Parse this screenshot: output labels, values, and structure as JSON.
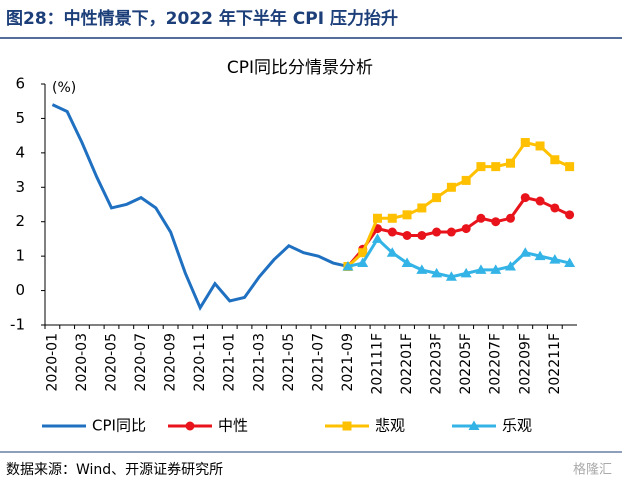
{
  "chart_data": {
    "type": "line",
    "title": "图28：中性情景下，2022 年下半年 CPI 压力抬升",
    "subtitle": "CPI同比分情景分析",
    "y_label": "(%)",
    "source": "数据来源：Wind、开源证券研究所",
    "watermark": "格隆汇",
    "categories": [
      "2020-01",
      null,
      "2020-03",
      null,
      "2020-05",
      null,
      "2020-07",
      null,
      "2020-09",
      null,
      "2020-11",
      null,
      "2021-01",
      null,
      "2021-03",
      null,
      "2021-05",
      null,
      "2021-07",
      null,
      "2021-09",
      null,
      "202111F",
      null,
      "202201F",
      null,
      "202203F",
      null,
      "202205F",
      null,
      "202207F",
      null,
      "202209F",
      null,
      "202211F",
      null
    ],
    "series": [
      {
        "name": "CPI同比",
        "color": "#1f70c1",
        "marker": "none",
        "values": [
          5.4,
          5.2,
          4.3,
          3.3,
          2.4,
          2.5,
          2.7,
          2.4,
          1.7,
          0.5,
          -0.5,
          0.2,
          -0.3,
          -0.2,
          0.4,
          0.9,
          1.3,
          1.1,
          1.0,
          0.8,
          0.7,
          null,
          null,
          null,
          null,
          null,
          null,
          null,
          null,
          null,
          null,
          null,
          null,
          null,
          null,
          null
        ]
      },
      {
        "name": "中性",
        "color": "#e8131b",
        "marker": "circle",
        "values": [
          null,
          null,
          null,
          null,
          null,
          null,
          null,
          null,
          null,
          null,
          null,
          null,
          null,
          null,
          null,
          null,
          null,
          null,
          null,
          null,
          0.7,
          1.2,
          1.8,
          1.7,
          1.6,
          1.6,
          1.7,
          1.7,
          1.8,
          2.1,
          2.0,
          2.1,
          2.7,
          2.6,
          2.4,
          2.2
        ]
      },
      {
        "name": "悲观",
        "color": "#ffc000",
        "marker": "square",
        "values": [
          null,
          null,
          null,
          null,
          null,
          null,
          null,
          null,
          null,
          null,
          null,
          null,
          null,
          null,
          null,
          null,
          null,
          null,
          null,
          null,
          0.7,
          1.1,
          2.1,
          2.1,
          2.2,
          2.4,
          2.7,
          3.0,
          3.2,
          3.6,
          3.6,
          3.7,
          4.3,
          4.2,
          3.8,
          3.6
        ]
      },
      {
        "name": "乐观",
        "color": "#33b3e6",
        "marker": "triangle",
        "values": [
          null,
          null,
          null,
          null,
          null,
          null,
          null,
          null,
          null,
          null,
          null,
          null,
          null,
          null,
          null,
          null,
          null,
          null,
          null,
          null,
          0.7,
          0.8,
          1.5,
          1.1,
          0.8,
          0.6,
          0.5,
          0.4,
          0.5,
          0.6,
          0.6,
          0.7,
          1.1,
          1.0,
          0.9,
          0.8
        ]
      }
    ],
    "ylim": [
      -1,
      6
    ],
    "yticks": [
      -1,
      0,
      1,
      2,
      3,
      4,
      5,
      6
    ],
    "grid": false
  }
}
